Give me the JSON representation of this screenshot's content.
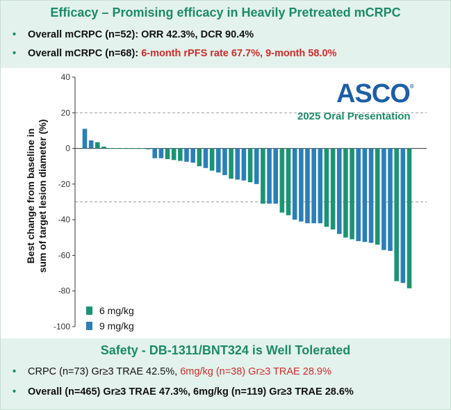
{
  "efficacy": {
    "title": "Efficacy – Promising efficacy in Heavily Pretreated mCRPC",
    "bullet1": "Overall mCRPC (n=52): ORR 42.3%, DCR 90.4%",
    "bullet2_prefix": "Overall mCRPC (n=68): ",
    "bullet2_highlight": "6-month rPFS rate 67.7%, 9-month 58.0%"
  },
  "logo": {
    "name": "ASCO",
    "mark": "®",
    "subtitle": "2025 Oral Presentation"
  },
  "safety": {
    "title": "Safety - DB-1311/BNT324 is Well Tolerated",
    "bullet1_prefix": "CRPC (n=73) Gr≥3 TRAE 42.5%, ",
    "bullet1_highlight": "6mg/kg (n=38) Gr≥3 TRAE 28.9%",
    "bullet2": "Overall (n=465) Gr≥3 TRAE 47.3%, 6mg/kg (n=119) Gr≥3 TRAE 28.6%"
  },
  "bullet_glyph": "•",
  "colors": {
    "six_mg": "#1a9474",
    "nine_mg": "#2a7fb8",
    "accent_green": "#1b8a68",
    "highlight_red": "#d12b2b"
  },
  "chart_data": {
    "type": "bar",
    "title": "",
    "ylabel": "Best change from baseline in sum of target lesion diameter (%)",
    "ylabel_line1": "Best change from baseline in",
    "ylabel_line2": "sum of target lesion diameter (%)",
    "xlabel": "",
    "ylim": [
      -100,
      40
    ],
    "yticks": [
      40,
      20,
      0,
      -20,
      -40,
      -60,
      -80,
      -100
    ],
    "reference_lines": [
      20,
      -30
    ],
    "legend": [
      {
        "label": "6 mg/kg",
        "color": "#1a9474"
      },
      {
        "label": "9 mg/kg",
        "color": "#2a7fb8"
      }
    ],
    "series_order_note": "waterfall, patients sorted left to right",
    "bars": [
      {
        "dose": "9 mg/kg",
        "value": 11
      },
      {
        "dose": "9 mg/kg",
        "value": 4.5
      },
      {
        "dose": "6 mg/kg",
        "value": 3.5
      },
      {
        "dose": "6 mg/kg",
        "value": 1
      },
      {
        "dose": "6 mg/kg",
        "value": 0
      },
      {
        "dose": "6 mg/kg",
        "value": 0
      },
      {
        "dose": "6 mg/kg",
        "value": 0
      },
      {
        "dose": "6 mg/kg",
        "value": 0
      },
      {
        "dose": "6 mg/kg",
        "value": 0
      },
      {
        "dose": "6 mg/kg",
        "value": 0
      },
      {
        "dose": "6 mg/kg",
        "value": -0.5
      },
      {
        "dose": "9 mg/kg",
        "value": -5.5
      },
      {
        "dose": "9 mg/kg",
        "value": -5.5
      },
      {
        "dose": "6 mg/kg",
        "value": -6
      },
      {
        "dose": "6 mg/kg",
        "value": -6.5
      },
      {
        "dose": "6 mg/kg",
        "value": -7
      },
      {
        "dose": "9 mg/kg",
        "value": -7.5
      },
      {
        "dose": "9 mg/kg",
        "value": -8
      },
      {
        "dose": "6 mg/kg",
        "value": -10
      },
      {
        "dose": "9 mg/kg",
        "value": -11
      },
      {
        "dose": "6 mg/kg",
        "value": -12.5
      },
      {
        "dose": "9 mg/kg",
        "value": -13.5
      },
      {
        "dose": "9 mg/kg",
        "value": -15
      },
      {
        "dose": "6 mg/kg",
        "value": -17
      },
      {
        "dose": "9 mg/kg",
        "value": -17.5
      },
      {
        "dose": "9 mg/kg",
        "value": -18
      },
      {
        "dose": "6 mg/kg",
        "value": -19
      },
      {
        "dose": "9 mg/kg",
        "value": -20
      },
      {
        "dose": "6 mg/kg",
        "value": -31
      },
      {
        "dose": "9 mg/kg",
        "value": -31
      },
      {
        "dose": "9 mg/kg",
        "value": -31
      },
      {
        "dose": "6 mg/kg",
        "value": -36
      },
      {
        "dose": "6 mg/kg",
        "value": -37.5
      },
      {
        "dose": "9 mg/kg",
        "value": -40
      },
      {
        "dose": "9 mg/kg",
        "value": -41
      },
      {
        "dose": "9 mg/kg",
        "value": -42
      },
      {
        "dose": "9 mg/kg",
        "value": -42
      },
      {
        "dose": "9 mg/kg",
        "value": -42
      },
      {
        "dose": "6 mg/kg",
        "value": -44
      },
      {
        "dose": "6 mg/kg",
        "value": -45.5
      },
      {
        "dose": "9 mg/kg",
        "value": -48
      },
      {
        "dose": "6 mg/kg",
        "value": -50
      },
      {
        "dose": "6 mg/kg",
        "value": -51
      },
      {
        "dose": "9 mg/kg",
        "value": -52
      },
      {
        "dose": "9 mg/kg",
        "value": -52.5
      },
      {
        "dose": "9 mg/kg",
        "value": -53
      },
      {
        "dose": "6 mg/kg",
        "value": -54
      },
      {
        "dose": "9 mg/kg",
        "value": -57
      },
      {
        "dose": "9 mg/kg",
        "value": -57.5
      },
      {
        "dose": "6 mg/kg",
        "value": -74.5
      },
      {
        "dose": "9 mg/kg",
        "value": -75.5
      },
      {
        "dose": "6 mg/kg",
        "value": -78.5
      }
    ]
  }
}
